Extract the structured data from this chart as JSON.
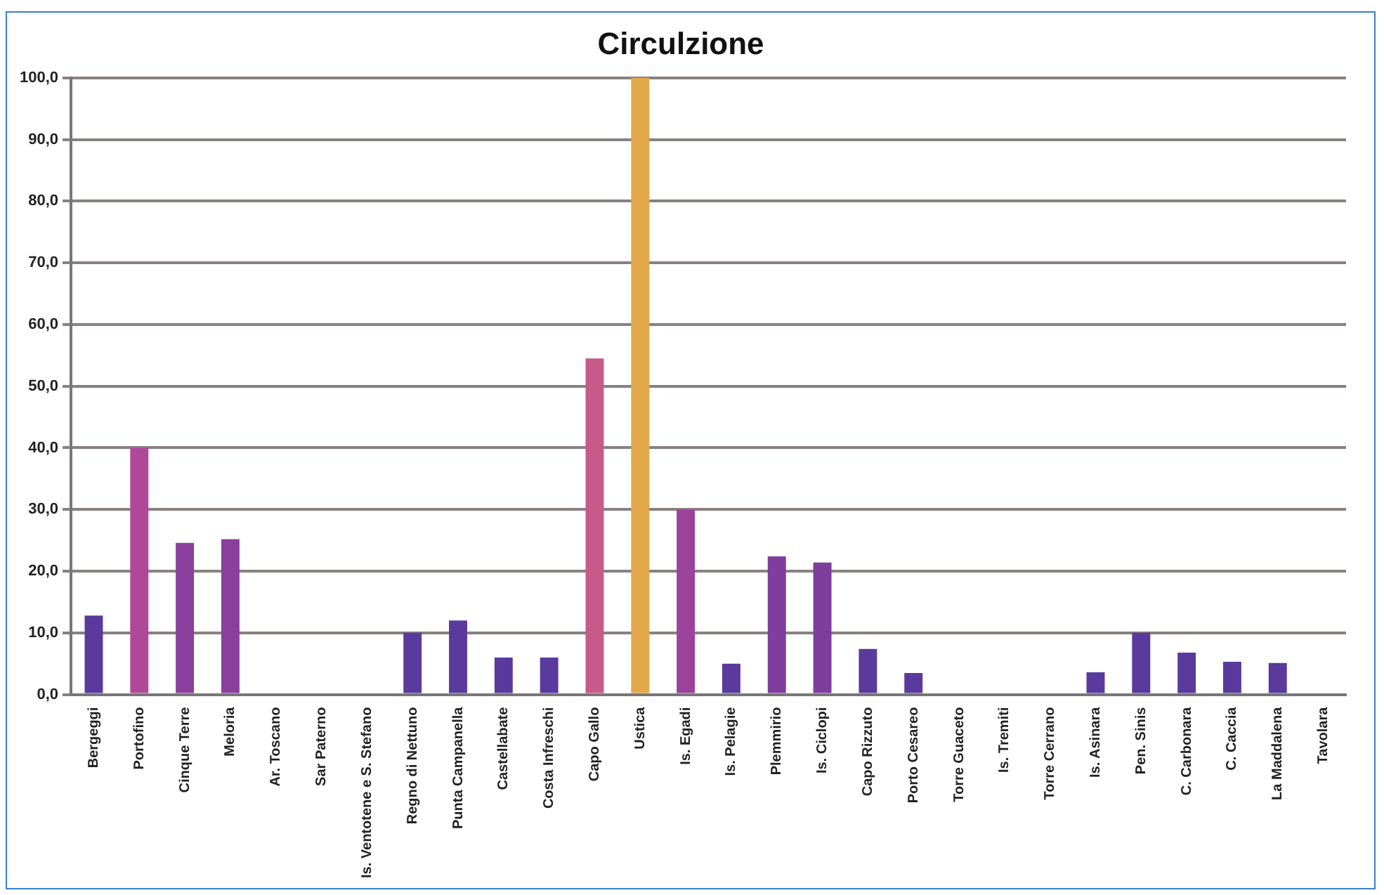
{
  "chart_data": {
    "type": "bar",
    "title": "Circulzione",
    "categories": [
      "Bergeggi",
      "Portofino",
      "Cinque Terre",
      "Meloria",
      "Ar. Toscano",
      "Sar Paterno",
      "Is. Ventotene e S. Stefano",
      "Regno di Nettuno",
      "Punta Campanella",
      "Castellabate",
      "Costa Infreschi",
      "Capo Gallo",
      "Ustica",
      "Is. Egadi",
      "Is. Pelagie",
      "Plemmirio",
      "Is. Ciclopi",
      "Capo Rizzuto",
      "Porto Cesareo",
      "Torre Guaceto",
      "Is. Tremiti",
      "Torre Cerrano",
      "Is. Asinara",
      "Pen. Sinis",
      "C. Carbonara",
      "C. Caccia",
      "La Maddalena",
      "Tavolara"
    ],
    "values": [
      12.8,
      40,
      24.6,
      25.2,
      0,
      0,
      0,
      10,
      12,
      6,
      6,
      54.5,
      100,
      30,
      5,
      22.4,
      21.4,
      7.4,
      3.5,
      0,
      0,
      0,
      3.6,
      10,
      6.8,
      5.3,
      5.1,
      0
    ],
    "colors": [
      "#5a3a9c",
      "#b0489a",
      "#8a3f9c",
      "#8a3f9c",
      "#5a3a9c",
      "#5a3a9c",
      "#5a3a9c",
      "#5a3a9c",
      "#5a3a9c",
      "#5a3a9c",
      "#5a3a9c",
      "#c65a8a",
      "#e2a84a",
      "#9a429c",
      "#5a3a9c",
      "#7e3e9c",
      "#7e3e9c",
      "#5a3a9c",
      "#5a3a9c",
      "#5a3a9c",
      "#5a3a9c",
      "#5a3a9c",
      "#5a3a9c",
      "#5a3a9c",
      "#5a3a9c",
      "#5a3a9c",
      "#5a3a9c",
      "#5a3a9c"
    ],
    "ylim": [
      0,
      100
    ],
    "yticks": [
      {
        "value": 0,
        "label": "0,0"
      },
      {
        "value": 10,
        "label": "10,0"
      },
      {
        "value": 20,
        "label": "20,0"
      },
      {
        "value": 30,
        "label": "30,0"
      },
      {
        "value": 40,
        "label": "40,0"
      },
      {
        "value": 50,
        "label": "50,0"
      },
      {
        "value": 60,
        "label": "60,0"
      },
      {
        "value": 70,
        "label": "70,0"
      },
      {
        "value": 80,
        "label": "80,0"
      },
      {
        "value": 90,
        "label": "90,0"
      },
      {
        "value": 100,
        "label": "100,0"
      }
    ],
    "grid": "y",
    "legend": false
  }
}
